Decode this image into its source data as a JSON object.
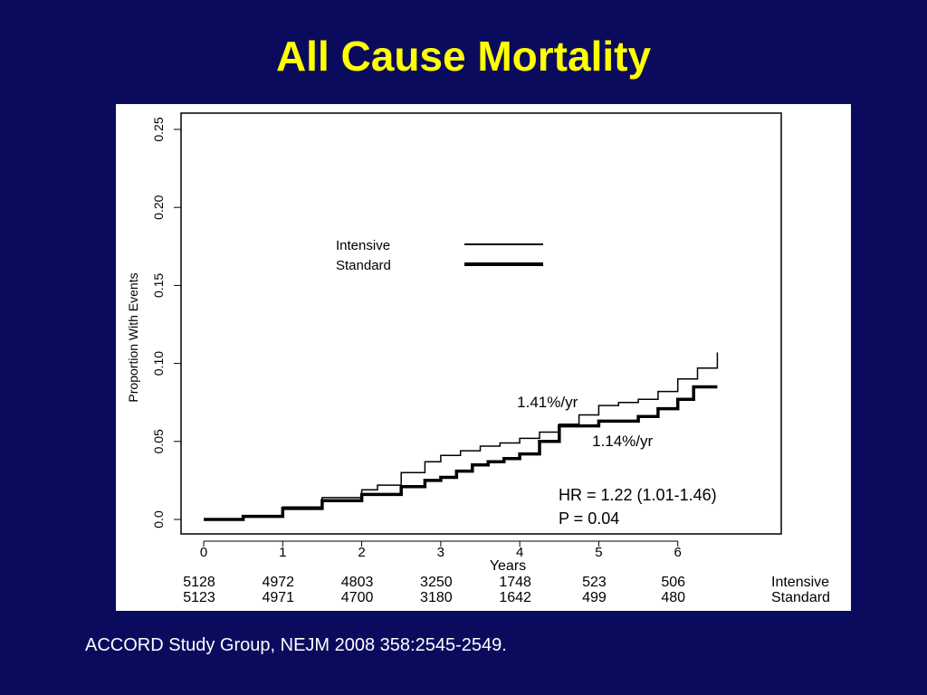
{
  "slide": {
    "title": "All Cause Mortality",
    "citation": "ACCORD Study Group, NEJM 2008 358:2545-2549.",
    "background_color": "#0b0b5e",
    "title_color": "#ffff00"
  },
  "chart_data": {
    "type": "line",
    "title": "",
    "xlabel": "Years",
    "ylabel": "Proportion With Events",
    "xlim": [
      0,
      7
    ],
    "ylim": [
      0,
      0.25
    ],
    "x_ticks": [
      0,
      1,
      2,
      3,
      4,
      5,
      6
    ],
    "y_ticks": [
      0.0,
      0.05,
      0.1,
      0.15,
      0.2,
      0.25
    ],
    "y_tick_labels": [
      "0.0",
      "0.05",
      "0.10",
      "0.15",
      "0.20",
      "0.25"
    ],
    "grid": false,
    "legend_position": "upper-center",
    "series": [
      {
        "name": "Intensive",
        "line_style": "thin",
        "color": "#000000",
        "x": [
          0,
          0.5,
          1,
          1.5,
          2,
          2.2,
          2.5,
          2.8,
          3,
          3.25,
          3.5,
          3.75,
          4,
          4.25,
          4.5,
          4.75,
          5,
          5.25,
          5.5,
          5.75,
          6,
          6.25,
          6.5
        ],
        "y": [
          0,
          0.002,
          0.008,
          0.014,
          0.019,
          0.022,
          0.03,
          0.037,
          0.041,
          0.044,
          0.047,
          0.049,
          0.052,
          0.056,
          0.061,
          0.067,
          0.073,
          0.075,
          0.077,
          0.082,
          0.09,
          0.097,
          0.107
        ]
      },
      {
        "name": "Standard",
        "line_style": "thick",
        "color": "#000000",
        "x": [
          0,
          0.5,
          1,
          1.5,
          2,
          2.5,
          2.8,
          3,
          3.2,
          3.4,
          3.6,
          3.8,
          4,
          4.25,
          4.5,
          4.75,
          5,
          5.25,
          5.5,
          5.75,
          6,
          6.2,
          6.5
        ],
        "y": [
          0,
          0.002,
          0.007,
          0.012,
          0.016,
          0.021,
          0.025,
          0.027,
          0.031,
          0.035,
          0.037,
          0.039,
          0.042,
          0.05,
          0.06,
          0.06,
          0.063,
          0.063,
          0.066,
          0.071,
          0.077,
          0.085,
          0.085
        ]
      }
    ],
    "annotations": [
      {
        "text": "1.41%/yr",
        "x": 4.35,
        "y": 0.072
      },
      {
        "text": "1.14%/yr",
        "x": 5.3,
        "y": 0.047
      }
    ],
    "stats": {
      "line1": "HR = 1.22 (1.01-1.46)",
      "line2": "P = 0.04"
    },
    "at_risk": {
      "rows": [
        {
          "label": "Intensive",
          "values": [
            "5128",
            "4972",
            "4803",
            "3250",
            "1748",
            "523",
            "506"
          ]
        },
        {
          "label": "Standard",
          "values": [
            "5123",
            "4971",
            "4700",
            "3180",
            "1642",
            "499",
            "480"
          ]
        }
      ]
    }
  }
}
